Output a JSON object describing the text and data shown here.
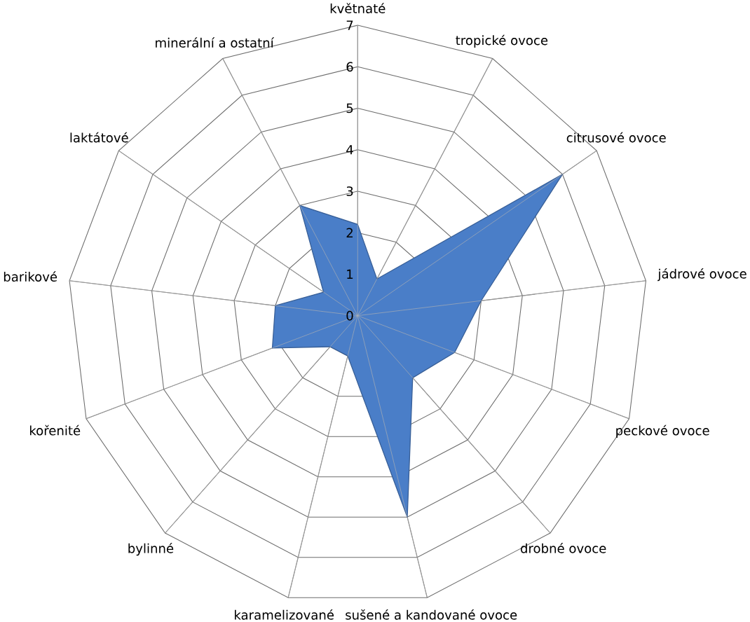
{
  "chart_data": {
    "type": "radar",
    "categories": [
      "květnaté",
      "tropické ovoce",
      "citrusové ovoce",
      "jádrové ovoce",
      "peckové ovoce",
      "drobné ovoce",
      "sušené a kandované ovoce",
      "karamelizované",
      "bylinné",
      "kořenité",
      "barikové",
      "laktátové",
      "minerální a ostatní"
    ],
    "series": [
      {
        "color": "#4a7ec8",
        "values": [
          2.2,
          1,
          6,
          3,
          2.5,
          2,
          5,
          1,
          1,
          2.2,
          2,
          1,
          3
        ]
      }
    ],
    "ylim": [
      0,
      7
    ],
    "yticks": [
      0,
      1,
      2,
      3,
      4,
      5,
      6,
      7
    ],
    "grid": true
  }
}
